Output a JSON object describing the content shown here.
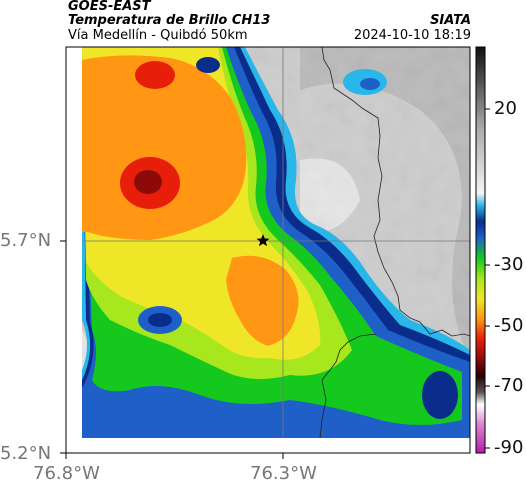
{
  "header": {
    "satellite": "GOES-EAST",
    "product": "Temperatura de Brillo CH13",
    "route": "Vía Medellín - Quibdó 50km",
    "source": "SIATA",
    "datetime": "2024-10-10 18:19"
  },
  "axes": {
    "lat_ticks": [
      "5.7°N",
      "5.2°N"
    ],
    "lon_ticks": [
      "76.8°W",
      "76.3°W"
    ]
  },
  "colorbar": {
    "labels": [
      "20",
      "-30",
      "-50",
      "-70",
      "-90"
    ],
    "units_celsius": true
  },
  "map": {
    "marker": "star-marker",
    "marker_lat": 5.7,
    "marker_lon": -76.32
  },
  "colors": {
    "gray_clear": "#c8c8c8",
    "cyan": "#29b6e8",
    "navy": "#0a2d8c",
    "blue": "#1e5fc8",
    "green": "#14c81e",
    "yellowgreen": "#a8e61e",
    "yellow": "#f0e628",
    "orange": "#ff9614",
    "red": "#e61e0a",
    "darkred": "#8c0a0a"
  }
}
